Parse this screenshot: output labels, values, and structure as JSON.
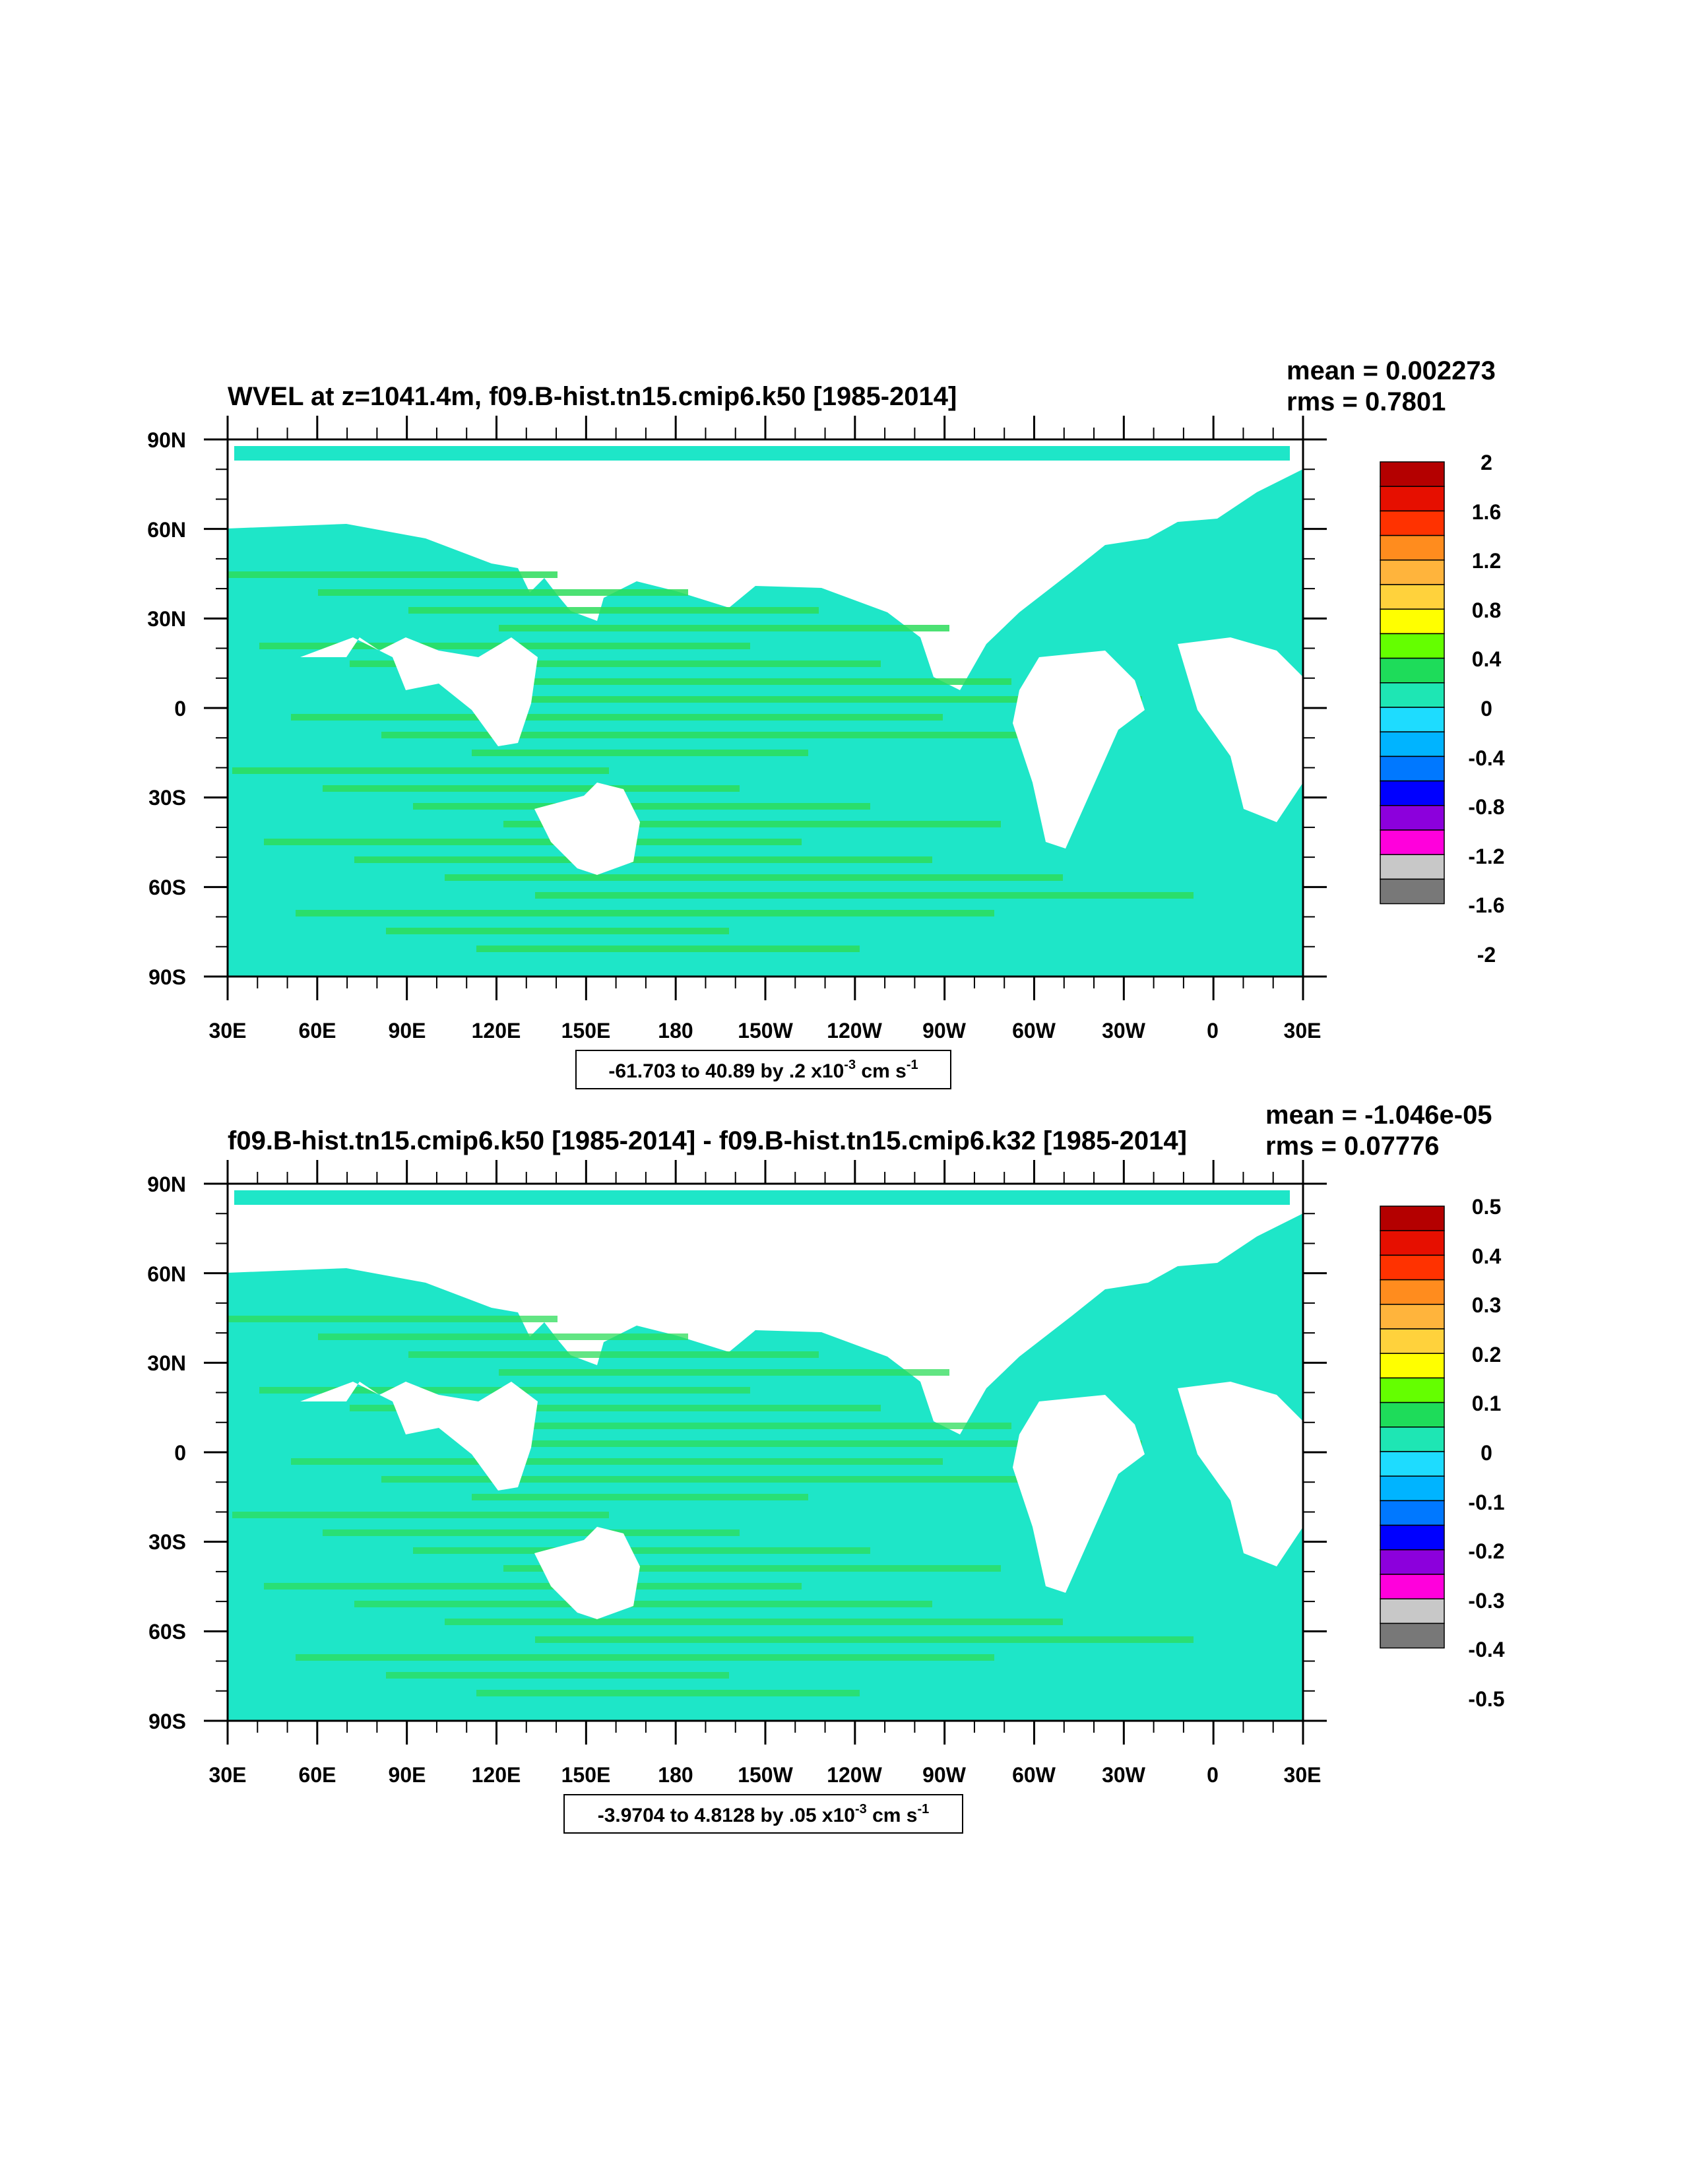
{
  "panels": [
    {
      "title": "WVEL at z=1041.4m, f09.B-hist.tn15.cmip6.k50 [1985-2014]",
      "mean_text": "mean = 0.002273",
      "rms_text": "rms = 0.7801",
      "contour_info_prefix": "-61.703 to 40.89 by .2 x10",
      "contour_info_exp": "-3",
      "contour_info_unit": " cm s",
      "contour_info_unit_exp": "-1",
      "colorbar_labels": [
        "2",
        "1.6",
        "1.2",
        "0.8",
        "0.4",
        "0",
        "-0.4",
        "-0.8",
        "-1.2",
        "-1.6",
        "-2"
      ]
    },
    {
      "title": "f09.B-hist.tn15.cmip6.k50 [1985-2014] - f09.B-hist.tn15.cmip6.k32 [1985-2014]",
      "mean_text": "mean = -1.046e-05",
      "rms_text": "rms = 0.07776",
      "contour_info_prefix": "-3.9704 to 4.8128 by .05 x10",
      "contour_info_exp": "-3",
      "contour_info_unit": " cm s",
      "contour_info_unit_exp": "-1",
      "colorbar_labels": [
        "0.5",
        "0.4",
        "0.3",
        "0.2",
        "0.1",
        "0",
        "-0.1",
        "-0.2",
        "-0.3",
        "-0.4",
        "-0.5"
      ]
    }
  ],
  "axes": {
    "lat_labels": [
      "90N",
      "60N",
      "30N",
      "0",
      "30S",
      "60S",
      "90S"
    ],
    "lon_labels": [
      "30E",
      "60E",
      "90E",
      "120E",
      "150E",
      "180",
      "150W",
      "120W",
      "90W",
      "60W",
      "30W",
      "0",
      "30E"
    ]
  },
  "colors": {
    "colorbar": [
      "#b40000",
      "#e60f00",
      "#ff3200",
      "#ff8c1e",
      "#ffb43c",
      "#ffd23c",
      "#ffff00",
      "#64ff00",
      "#1edc5a",
      "#1ee6b4",
      "#1edcff",
      "#00b4ff",
      "#0078ff",
      "#0000ff",
      "#8c00dc",
      "#ff00dc",
      "#c8c8c8",
      "#787878"
    ],
    "ocean_base": "#1ee6c8",
    "ocean_green": "#2ddc5a",
    "land": "#ffffff"
  }
}
